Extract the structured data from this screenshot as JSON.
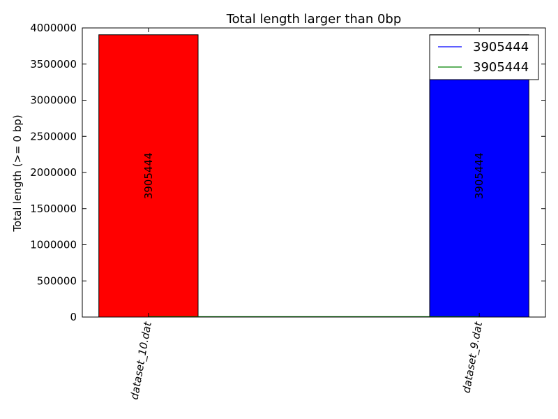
{
  "chart_data": {
    "type": "bar",
    "title": "Total length larger than 0bp",
    "ylabel": "Total length (>= 0 bp)",
    "xlabel": "",
    "ylim": [
      0,
      4000000
    ],
    "yticks": [
      0,
      500000,
      1000000,
      1500000,
      2000000,
      2500000,
      3000000,
      3500000,
      4000000
    ],
    "categories": [
      "dataset_10.dat",
      "dataset_9.dat"
    ],
    "values": [
      3905444,
      3905444
    ],
    "bar_colors": [
      "#ff0000",
      "#0000ff"
    ],
    "bar_labels": [
      "3905444",
      "3905444"
    ],
    "legend": {
      "placement": "top-right",
      "entries": [
        {
          "label": "3905444",
          "color": "#0000ff"
        },
        {
          "label": "3905444",
          "color": "#008000"
        }
      ]
    },
    "baseline_line": {
      "color": "#008000",
      "y": 0
    },
    "grid": false
  }
}
